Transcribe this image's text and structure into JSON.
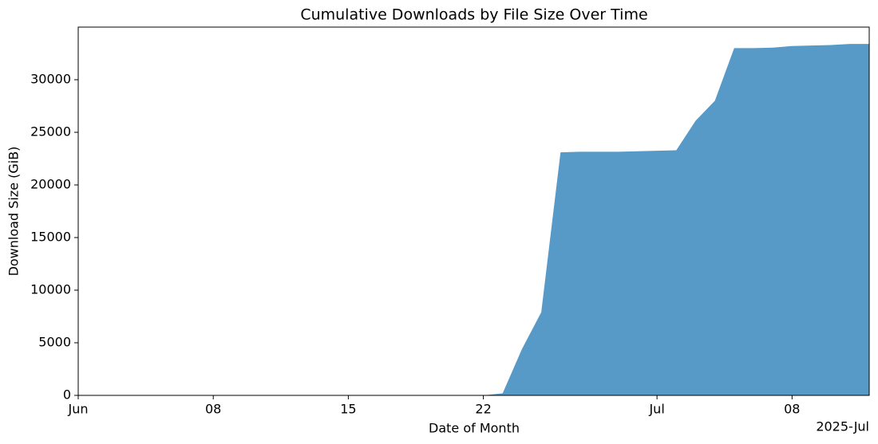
{
  "chart_data": {
    "type": "area",
    "title": "Cumulative Downloads by File Size Over Time",
    "xlabel": "Date of Month",
    "ylabel": "Download Size (GiB)",
    "x_offset_label": "2025-Jul",
    "x": [
      "2025-06-01",
      "2025-06-02",
      "2025-06-03",
      "2025-06-04",
      "2025-06-05",
      "2025-06-06",
      "2025-06-07",
      "2025-06-08",
      "2025-06-09",
      "2025-06-10",
      "2025-06-11",
      "2025-06-12",
      "2025-06-13",
      "2025-06-14",
      "2025-06-15",
      "2025-06-16",
      "2025-06-17",
      "2025-06-18",
      "2025-06-19",
      "2025-06-20",
      "2025-06-21",
      "2025-06-22",
      "2025-06-23",
      "2025-06-24",
      "2025-06-25",
      "2025-06-26",
      "2025-06-27",
      "2025-06-28",
      "2025-06-29",
      "2025-06-30",
      "2025-07-01",
      "2025-07-02",
      "2025-07-03",
      "2025-07-04",
      "2025-07-05",
      "2025-07-06",
      "2025-07-07",
      "2025-07-08",
      "2025-07-09",
      "2025-07-10",
      "2025-07-11",
      "2025-07-12"
    ],
    "values": [
      0,
      0,
      0,
      0,
      0,
      0,
      0,
      0,
      0,
      0,
      0,
      0,
      0,
      0,
      0,
      0,
      0,
      0,
      0,
      0,
      0,
      0,
      200,
      4400,
      7900,
      23100,
      23150,
      23150,
      23150,
      23200,
      23250,
      23300,
      26100,
      28000,
      33000,
      33000,
      33050,
      33200,
      33250,
      33300,
      33400,
      33400
    ],
    "color": "#5799c7",
    "xlim": [
      "2025-06-01",
      "2025-07-12"
    ],
    "xticks": [
      {
        "value": "2025-06-01",
        "label": "Jun"
      },
      {
        "value": "2025-06-08",
        "label": "08"
      },
      {
        "value": "2025-06-15",
        "label": "15"
      },
      {
        "value": "2025-06-22",
        "label": "22"
      },
      {
        "value": "2025-07-01",
        "label": "Jul"
      },
      {
        "value": "2025-07-08",
        "label": "08"
      }
    ],
    "ylim": [
      0,
      35000
    ],
    "yticks": [
      0,
      5000,
      10000,
      15000,
      20000,
      25000,
      30000
    ],
    "grid": false
  }
}
